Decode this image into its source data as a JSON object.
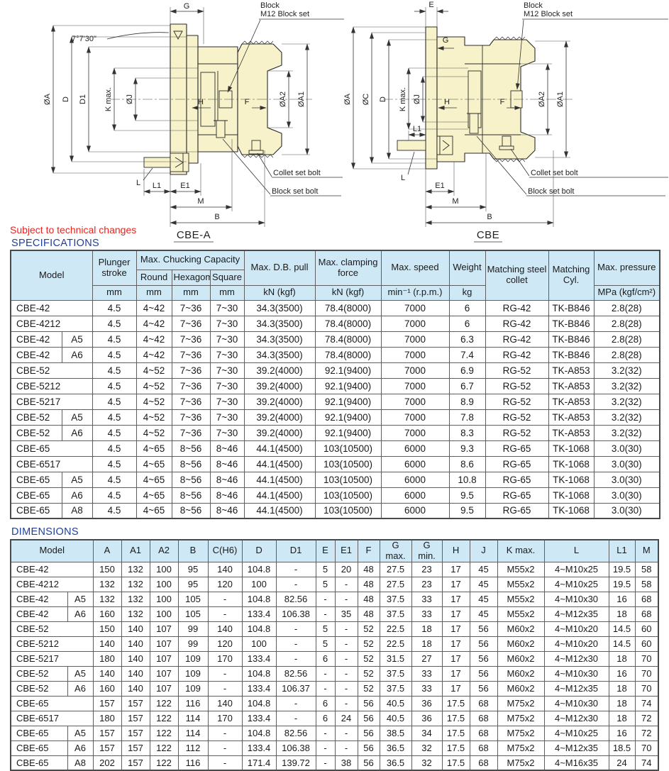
{
  "colors": {
    "drawing_fill": "#F7F2C9",
    "header_blue": "#CFE8F6",
    "row_yellow": "#FFFDE6",
    "heading_navy": "#21409A",
    "note_red": "#E8251F"
  },
  "note": "Subject to technical changes",
  "spec_heading": "SPECIFICATIONS",
  "dims_heading": "DIMENSIONS",
  "drawings": {
    "left": {
      "title": "CBE-A",
      "labels": {
        "g": "G",
        "oa": "ØA",
        "d": "D",
        "d1": "D1",
        "kmax": "K max.",
        "oj": "ØJ",
        "h": "H",
        "f": "F",
        "oa2": "ØA2",
        "oa1": "ØA1",
        "l": "L",
        "l1": "L1",
        "e1": "E1",
        "m": "M",
        "b": "B",
        "angle": "7°7'30\"",
        "block": "Block",
        "block_set": "M12 Block set",
        "collet_set_bolt": "Collet set bolt",
        "block_set_bolt": "Block set bolt"
      }
    },
    "right": {
      "title": "CBE",
      "labels": {
        "e": "E",
        "g": "G",
        "oa": "ØA",
        "oc": "ØC",
        "d": "D",
        "kmax": "K max.",
        "oj": "ØJ",
        "h": "H",
        "f": "F",
        "oa2": "ØA2",
        "oa1": "ØA1",
        "l": "L",
        "l1": "L1",
        "e1": "E1",
        "m": "M",
        "b": "B",
        "block": "Block",
        "block_set": "M12 Block set",
        "collet_set_bolt": "Collet set bolt",
        "block_set_bolt": "Block set bolt"
      }
    }
  },
  "spec_table": {
    "headers": {
      "model": "Model",
      "plunger": "Plunger stroke",
      "chucking": "Max. Chucking Capacity",
      "round": "Round",
      "hexagom": "Hexagom",
      "square": "Square",
      "db_pull": "Max. D.B. pull",
      "clamping": "Max. clamping force",
      "speed": "Max. speed",
      "weight": "Weight",
      "collet": "Matching steel collet",
      "cyl": "Matching Cyl.",
      "pressure": "Max. pressure"
    },
    "units": [
      "mm",
      "mm",
      "mm",
      "mm",
      "kN (kgf)",
      "kN (kgf)",
      "min⁻¹ (r.p.m.)",
      "kg",
      "MPa (kgf/cm²)"
    ],
    "rows": [
      [
        "CBE-42",
        "",
        "4.5",
        "4~42",
        "7~36",
        "7~30",
        "34.3(3500)",
        "78.4(8000)",
        "7000",
        "6",
        "RG-42",
        "TK-B846",
        "2.8(28)"
      ],
      [
        "CBE-4212",
        "",
        "4.5",
        "4~42",
        "7~36",
        "7~30",
        "34.3(3500)",
        "78.4(8000)",
        "7000",
        "6",
        "RG-42",
        "TK-B846",
        "2.8(28)"
      ],
      [
        "CBE-42",
        "A5",
        "4.5",
        "4~42",
        "7~36",
        "7~30",
        "34.3(3500)",
        "78.4(8000)",
        "7000",
        "6.3",
        "RG-42",
        "TK-B846",
        "2.8(28)"
      ],
      [
        "CBE-42",
        "A6",
        "4.5",
        "4~42",
        "7~36",
        "7~30",
        "34.3(3500)",
        "78.4(8000)",
        "7000",
        "7.4",
        "RG-42",
        "TK-B846",
        "2.8(28)"
      ],
      [
        "CBE-52",
        "",
        "4.5",
        "4~52",
        "7~36",
        "7~30",
        "39.2(4000)",
        "92.1(9400)",
        "7000",
        "6.9",
        "RG-52",
        "TK-A853",
        "3.2(32)"
      ],
      [
        "CBE-5212",
        "",
        "4.5",
        "4~52",
        "7~36",
        "7~30",
        "39.2(4000)",
        "92.1(9400)",
        "7000",
        "6.7",
        "RG-52",
        "TK-A853",
        "3.2(32)"
      ],
      [
        "CBE-5217",
        "",
        "4.5",
        "4~52",
        "7~36",
        "7~30",
        "39.2(4000)",
        "92.1(9400)",
        "7000",
        "8.9",
        "RG-52",
        "TK-A853",
        "3.2(32)"
      ],
      [
        "CBE-52",
        "A5",
        "4.5",
        "4~52",
        "7~36",
        "7~30",
        "39.2(4000)",
        "92.1(9400)",
        "7000",
        "7.8",
        "RG-52",
        "TK-A853",
        "3.2(32)"
      ],
      [
        "CBE-52",
        "A6",
        "4.5",
        "4~52",
        "7~36",
        "7~30",
        "39.2(4000)",
        "92.1(9400)",
        "7000",
        "8.3",
        "RG-52",
        "TK-A853",
        "3.2(32)"
      ],
      [
        "CBE-65",
        "",
        "4.5",
        "4~65",
        "8~56",
        "8~46",
        "44.1(4500)",
        "103(10500)",
        "6000",
        "9.3",
        "RG-65",
        "TK-1068",
        "3.0(30)"
      ],
      [
        "CBE-6517",
        "",
        "4.5",
        "4~65",
        "8~56",
        "8~46",
        "44.1(4500)",
        "103(10500)",
        "6000",
        "8.6",
        "RG-65",
        "TK-1068",
        "3.0(30)"
      ],
      [
        "CBE-65",
        "A5",
        "4.5",
        "4~65",
        "8~56",
        "8~46",
        "44.1(4500)",
        "103(10500)",
        "6000",
        "10.8",
        "RG-65",
        "TK-1068",
        "3.0(30)"
      ],
      [
        "CBE-65",
        "A6",
        "4.5",
        "4~65",
        "8~56",
        "8~46",
        "44.1(4500)",
        "103(10500)",
        "6000",
        "9.5",
        "RG-65",
        "TK-1068",
        "3.0(30)"
      ],
      [
        "CBE-65",
        "A8",
        "4.5",
        "4~65",
        "8~56",
        "8~46",
        "44.1(4500)",
        "103(10500)",
        "6000",
        "9.5",
        "RG-65",
        "TK-1068",
        "3.0(30)"
      ]
    ]
  },
  "dim_table": {
    "headers": [
      "Model",
      "A",
      "A1",
      "A2",
      "B",
      "C(H6)",
      "D",
      "D1",
      "E",
      "E1",
      "F",
      "G max.",
      "G min.",
      "H",
      "J",
      "K max.",
      "L",
      "L1",
      "M"
    ],
    "rows": [
      [
        "CBE-42",
        "",
        "150",
        "132",
        "100",
        "95",
        "140",
        "104.8",
        "-",
        "5",
        "20",
        "48",
        "27.5",
        "23",
        "17",
        "45",
        "M55x2",
        "4~M10x25",
        "19.5",
        "58"
      ],
      [
        "CBE-4212",
        "",
        "132",
        "132",
        "100",
        "95",
        "120",
        "100",
        "-",
        "5",
        "-",
        "48",
        "27.5",
        "23",
        "17",
        "45",
        "M55x2",
        "4~M10x25",
        "19.5",
        "58"
      ],
      [
        "CBE-42",
        "A5",
        "132",
        "132",
        "100",
        "105",
        "-",
        "104.8",
        "82.56",
        "-",
        "-",
        "48",
        "37.5",
        "33",
        "17",
        "45",
        "M55x2",
        "4~M10x30",
        "16",
        "68"
      ],
      [
        "CBE-42",
        "A6",
        "160",
        "132",
        "100",
        "105",
        "-",
        "133.4",
        "106.38",
        "-",
        "35",
        "48",
        "37.5",
        "33",
        "17",
        "45",
        "M55x2",
        "4~M12x35",
        "18",
        "68"
      ],
      [
        "CBE-52",
        "",
        "150",
        "140",
        "107",
        "99",
        "140",
        "104.8",
        "-",
        "5",
        "-",
        "52",
        "22.5",
        "18",
        "17",
        "56",
        "M60x2",
        "4~M10x20",
        "14.5",
        "60"
      ],
      [
        "CBE-5212",
        "",
        "140",
        "140",
        "107",
        "99",
        "120",
        "100",
        "-",
        "5",
        "-",
        "52",
        "22.5",
        "18",
        "17",
        "56",
        "M60x2",
        "4~M10x20",
        "14.5",
        "60"
      ],
      [
        "CBE-5217",
        "",
        "180",
        "140",
        "107",
        "109",
        "170",
        "133.4",
        "-",
        "6",
        "-",
        "52",
        "31.5",
        "27",
        "17",
        "56",
        "M60x2",
        "4~M12x30",
        "18",
        "70"
      ],
      [
        "CBE-52",
        "A5",
        "140",
        "140",
        "107",
        "109",
        "-",
        "104.8",
        "82.56",
        "-",
        "-",
        "52",
        "37.5",
        "33",
        "17",
        "56",
        "M60x2",
        "4~M10x30",
        "16",
        "70"
      ],
      [
        "CBE-52",
        "A6",
        "160",
        "140",
        "107",
        "109",
        "-",
        "133.4",
        "106.37",
        "-",
        "-",
        "52",
        "37.5",
        "33",
        "17",
        "56",
        "M60x2",
        "4~M12x35",
        "18",
        "70"
      ],
      [
        "CBE-65",
        "",
        "157",
        "157",
        "122",
        "116",
        "140",
        "104.8",
        "-",
        "6",
        "-",
        "56",
        "40.5",
        "36",
        "17.5",
        "68",
        "M75x2",
        "4~M10x30",
        "18",
        "74"
      ],
      [
        "CBE-6517",
        "",
        "180",
        "157",
        "122",
        "114",
        "170",
        "133.4",
        "-",
        "6",
        "24",
        "56",
        "40.5",
        "36",
        "17.5",
        "68",
        "M75x2",
        "4~M12x30",
        "18",
        "72"
      ],
      [
        "CBE-65",
        "A5",
        "157",
        "157",
        "122",
        "114",
        "-",
        "104.8",
        "82.56",
        "-",
        "-",
        "56",
        "38.5",
        "34",
        "17.5",
        "68",
        "M75x2",
        "4~M10x25",
        "16",
        "72"
      ],
      [
        "CBE-65",
        "A6",
        "157",
        "157",
        "122",
        "112",
        "-",
        "133.4",
        "106.38",
        "-",
        "-",
        "56",
        "36.5",
        "32",
        "17.5",
        "68",
        "M75x2",
        "4~M12x35",
        "18.5",
        "70"
      ],
      [
        "CBE-65",
        "A8",
        "202",
        "157",
        "122",
        "116",
        "-",
        "171.4",
        "139.72",
        "-",
        "38",
        "56",
        "36.5",
        "32",
        "17.5",
        "68",
        "M75x2",
        "4~M16x35",
        "24",
        "74"
      ]
    ]
  }
}
